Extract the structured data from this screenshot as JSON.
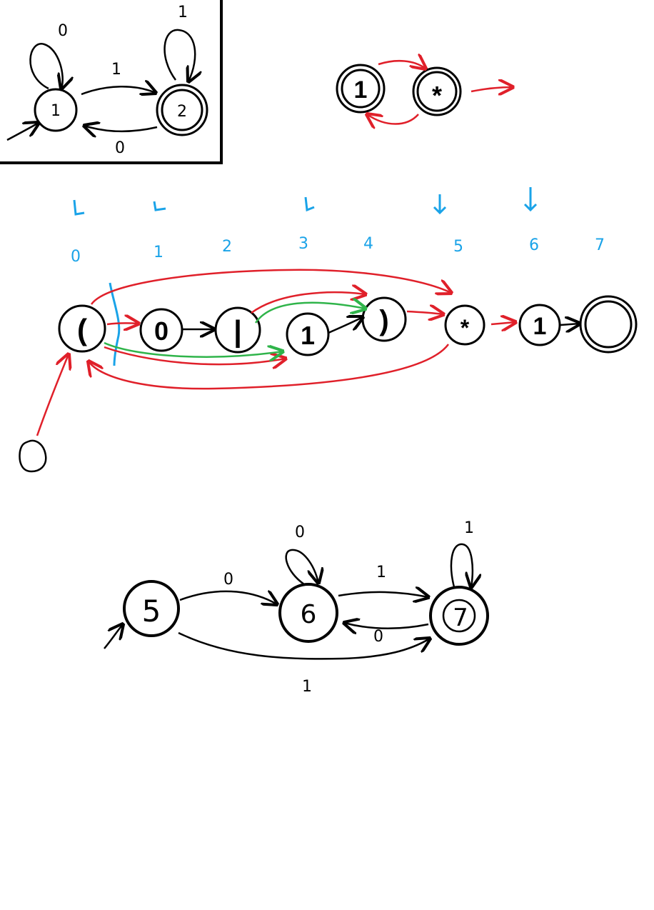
{
  "colors": {
    "ink": "#000000",
    "red": "#e0202a",
    "green": "#2fb44a",
    "blue": "#1aa3e8"
  },
  "dfa_box": {
    "states": [
      "1",
      "2"
    ],
    "loop_label_state1": "0",
    "loop_label_state2": "1",
    "edge_1_to_2": "1",
    "edge_2_to_1": "0"
  },
  "top_right": {
    "node_one": "1",
    "node_star": "*"
  },
  "index_row": [
    "0",
    "1",
    "2",
    "3",
    "4",
    "5",
    "6",
    "7"
  ],
  "regex_nodes": [
    "(",
    "0",
    "|",
    "1",
    ")",
    "*",
    "1"
  ],
  "bottom_dfa": {
    "states": [
      "5",
      "6",
      "7"
    ],
    "edge_5_to_6": "0",
    "loop_6": "0",
    "edge_6_to_7": "1",
    "loop_7": "1",
    "edge_7_to_6": "0",
    "edge_5_to_7": "1"
  }
}
